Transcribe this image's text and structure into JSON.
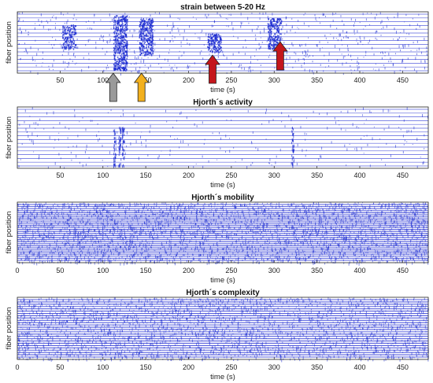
{
  "chart_data": [
    {
      "type": "heatmap",
      "title": "strain between 5-20 Hz",
      "xlabel": "time (s)",
      "ylabel": "fiber position",
      "xlim": [
        0,
        480
      ],
      "x_ticks": [
        50,
        100,
        150,
        200,
        250,
        300,
        350,
        400,
        450
      ],
      "arrows": [
        {
          "x": 112,
          "color": "#9a9a9a",
          "direction": "up"
        },
        {
          "x": 145,
          "color": "#f2b01e",
          "direction": "up"
        },
        {
          "x": 228,
          "color": "#c4161c",
          "direction": "up"
        },
        {
          "x": 307,
          "color": "#c4161c",
          "direction": "up"
        }
      ]
    },
    {
      "type": "heatmap",
      "title": "Hjorth´s activity",
      "xlabel": "time (s)",
      "ylabel": "fiber position",
      "xlim": [
        0,
        480
      ],
      "x_ticks": [
        50,
        100,
        150,
        200,
        250,
        300,
        350,
        400,
        450
      ]
    },
    {
      "type": "heatmap",
      "title": "Hjorth´s mobility",
      "xlabel": "time (s)",
      "ylabel": "fiber position",
      "xlim": [
        0,
        480
      ],
      "x_ticks": [
        0,
        50,
        100,
        150,
        200,
        250,
        300,
        350,
        400,
        450
      ]
    },
    {
      "type": "heatmap",
      "title": "Hjorth´s complexity",
      "xlabel": "time (s)",
      "ylabel": "fiber position",
      "xlim": [
        0,
        480
      ],
      "x_ticks": [
        0,
        50,
        100,
        150,
        200,
        250,
        300,
        350,
        400,
        450
      ]
    }
  ]
}
